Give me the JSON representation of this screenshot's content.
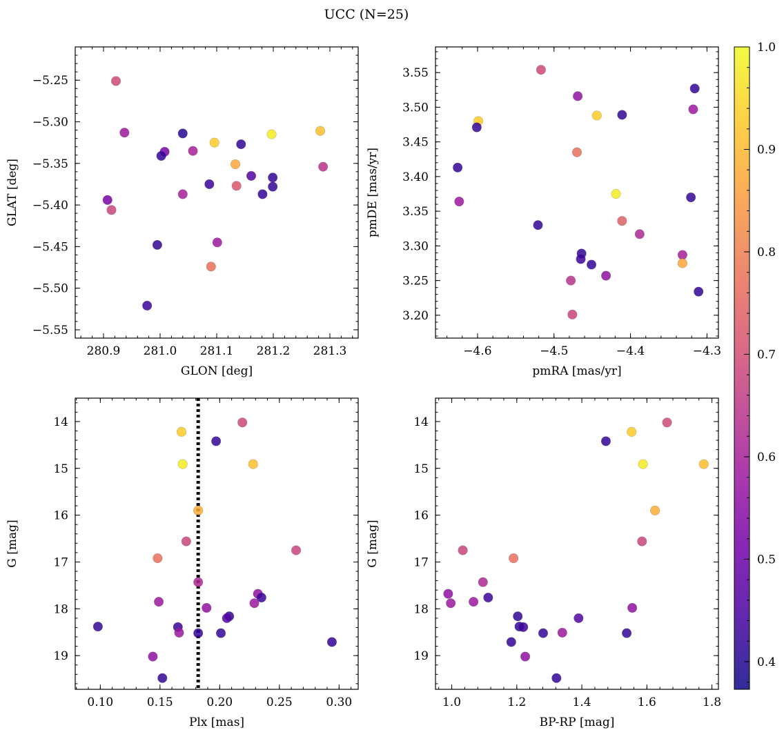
{
  "figure": {
    "title": "UCC (N=25)"
  },
  "colormap": {
    "name": "plasma",
    "alpha": 0.85,
    "stops": [
      "#0d0887",
      "#46039f",
      "#7201a8",
      "#9c179e",
      "#bd3786",
      "#d8576b",
      "#ed7953",
      "#fb9f3a",
      "#fdca26",
      "#f0f921"
    ],
    "range": [
      0.373,
      1.0
    ],
    "colorbar_ticks": [
      0.4,
      0.5,
      0.6,
      0.7,
      0.8,
      0.9,
      1.0
    ],
    "colorbar_tick_labels": [
      "0.4",
      "0.5",
      "0.6",
      "0.7",
      "0.8",
      "0.9",
      "1.0"
    ]
  },
  "chart_data": [
    {
      "type": "scatter",
      "xlabel": "GLON [deg]",
      "ylabel": "GLAT [deg]",
      "xlim": [
        280.85,
        281.35
      ],
      "ylim": [
        -5.56,
        -5.21
      ],
      "invert_y": false,
      "xticks": [
        280.9,
        281.0,
        281.1,
        281.2,
        281.3
      ],
      "xtick_labels": [
        "280.9",
        "281.0",
        "281.1",
        "281.2",
        "281.3"
      ],
      "yticks": [
        -5.25,
        -5.3,
        -5.35,
        -5.4,
        -5.45,
        -5.5,
        -5.55
      ],
      "ytick_labels": [
        "−5.25",
        "−5.30",
        "−5.35",
        "−5.40",
        "−5.45",
        "−5.50",
        "−5.55"
      ],
      "points": [
        {
          "x": 280.922,
          "y": -5.251,
          "c": 0.69
        },
        {
          "x": 280.937,
          "y": -5.313,
          "c": 0.58
        },
        {
          "x": 281.04,
          "y": -5.314,
          "c": 0.4
        },
        {
          "x": 281.096,
          "y": -5.325,
          "c": 0.93
        },
        {
          "x": 281.143,
          "y": -5.327,
          "c": 0.42
        },
        {
          "x": 281.197,
          "y": -5.315,
          "c": 0.98
        },
        {
          "x": 281.283,
          "y": -5.311,
          "c": 0.91
        },
        {
          "x": 281.008,
          "y": -5.336,
          "c": 0.52
        },
        {
          "x": 281.002,
          "y": -5.341,
          "c": 0.42
        },
        {
          "x": 281.058,
          "y": -5.335,
          "c": 0.6
        },
        {
          "x": 281.133,
          "y": -5.351,
          "c": 0.87
        },
        {
          "x": 281.161,
          "y": -5.365,
          "c": 0.46
        },
        {
          "x": 281.199,
          "y": -5.367,
          "c": 0.42
        },
        {
          "x": 281.288,
          "y": -5.354,
          "c": 0.64
        },
        {
          "x": 281.087,
          "y": -5.375,
          "c": 0.43
        },
        {
          "x": 281.135,
          "y": -5.377,
          "c": 0.72
        },
        {
          "x": 281.199,
          "y": -5.378,
          "c": 0.42
        },
        {
          "x": 281.181,
          "y": -5.387,
          "c": 0.42
        },
        {
          "x": 281.04,
          "y": -5.387,
          "c": 0.6
        },
        {
          "x": 280.907,
          "y": -5.394,
          "c": 0.52
        },
        {
          "x": 280.914,
          "y": -5.406,
          "c": 0.68
        },
        {
          "x": 280.995,
          "y": -5.448,
          "c": 0.42
        },
        {
          "x": 281.101,
          "y": -5.445,
          "c": 0.58
        },
        {
          "x": 281.09,
          "y": -5.474,
          "c": 0.77
        },
        {
          "x": 280.977,
          "y": -5.521,
          "c": 0.43
        }
      ]
    },
    {
      "type": "scatter",
      "xlabel": "pmRA [mas/yr]",
      "ylabel": "pmDE [mas/yr]",
      "xlim": [
        -4.655,
        -4.285
      ],
      "ylim": [
        3.167,
        3.587
      ],
      "invert_y": false,
      "xticks": [
        -4.6,
        -4.5,
        -4.4,
        -4.3
      ],
      "xtick_labels": [
        "−4.6",
        "−4.5",
        "−4.4",
        "−4.3"
      ],
      "yticks": [
        3.2,
        3.25,
        3.3,
        3.35,
        3.4,
        3.45,
        3.5,
        3.55
      ],
      "ytick_labels": [
        "3.20",
        "3.25",
        "3.30",
        "3.35",
        "3.40",
        "3.45",
        "3.50",
        "3.55"
      ],
      "points": [
        {
          "x": -4.517,
          "y": 3.554,
          "c": 0.69
        },
        {
          "x": -4.316,
          "y": 3.527,
          "c": 0.42
        },
        {
          "x": -4.469,
          "y": 3.516,
          "c": 0.56
        },
        {
          "x": -4.318,
          "y": 3.497,
          "c": 0.58
        },
        {
          "x": -4.411,
          "y": 3.489,
          "c": 0.42
        },
        {
          "x": -4.444,
          "y": 3.488,
          "c": 0.93
        },
        {
          "x": -4.599,
          "y": 3.48,
          "c": 0.93
        },
        {
          "x": -4.601,
          "y": 3.471,
          "c": 0.42
        },
        {
          "x": -4.47,
          "y": 3.435,
          "c": 0.77
        },
        {
          "x": -4.626,
          "y": 3.413,
          "c": 0.42
        },
        {
          "x": -4.419,
          "y": 3.375,
          "c": 0.98
        },
        {
          "x": -4.321,
          "y": 3.37,
          "c": 0.42
        },
        {
          "x": -4.624,
          "y": 3.364,
          "c": 0.58
        },
        {
          "x": -4.411,
          "y": 3.336,
          "c": 0.74
        },
        {
          "x": -4.521,
          "y": 3.33,
          "c": 0.42
        },
        {
          "x": -4.388,
          "y": 3.317,
          "c": 0.62
        },
        {
          "x": -4.464,
          "y": 3.289,
          "c": 0.42
        },
        {
          "x": -4.332,
          "y": 3.287,
          "c": 0.6
        },
        {
          "x": -4.465,
          "y": 3.281,
          "c": 0.43
        },
        {
          "x": -4.332,
          "y": 3.275,
          "c": 0.87
        },
        {
          "x": -4.451,
          "y": 3.273,
          "c": 0.42
        },
        {
          "x": -4.432,
          "y": 3.257,
          "c": 0.56
        },
        {
          "x": -4.478,
          "y": 3.25,
          "c": 0.64
        },
        {
          "x": -4.311,
          "y": 3.234,
          "c": 0.42
        },
        {
          "x": -4.476,
          "y": 3.201,
          "c": 0.68
        }
      ]
    },
    {
      "type": "scatter",
      "xlabel": "Plx [mas]",
      "ylabel": "G [mag]",
      "xlim": [
        0.079,
        0.316
      ],
      "ylim": [
        13.5,
        19.72
      ],
      "invert_y": true,
      "xticks": [
        0.1,
        0.15,
        0.2,
        0.25,
        0.3
      ],
      "xtick_labels": [
        "0.10",
        "0.15",
        "0.20",
        "0.25",
        "0.30"
      ],
      "yticks": [
        14,
        15,
        16,
        17,
        18,
        19
      ],
      "ytick_labels": [
        "14",
        "15",
        "16",
        "17",
        "18",
        "19"
      ],
      "vline": {
        "x": 0.182,
        "style": "dotted",
        "color": "#000000"
      },
      "points": [
        {
          "x": 0.219,
          "y": 14.02,
          "c": 0.69
        },
        {
          "x": 0.168,
          "y": 14.22,
          "c": 0.93
        },
        {
          "x": 0.197,
          "y": 14.42,
          "c": 0.42
        },
        {
          "x": 0.169,
          "y": 14.91,
          "c": 0.98
        },
        {
          "x": 0.228,
          "y": 14.91,
          "c": 0.91
        },
        {
          "x": 0.182,
          "y": 15.9,
          "c": 0.88
        },
        {
          "x": 0.172,
          "y": 16.56,
          "c": 0.68
        },
        {
          "x": 0.264,
          "y": 16.75,
          "c": 0.68
        },
        {
          "x": 0.148,
          "y": 16.92,
          "c": 0.77
        },
        {
          "x": 0.182,
          "y": 17.43,
          "c": 0.62
        },
        {
          "x": 0.232,
          "y": 17.68,
          "c": 0.56
        },
        {
          "x": 0.235,
          "y": 17.76,
          "c": 0.43
        },
        {
          "x": 0.149,
          "y": 17.85,
          "c": 0.58
        },
        {
          "x": 0.229,
          "y": 17.88,
          "c": 0.58
        },
        {
          "x": 0.189,
          "y": 17.98,
          "c": 0.56
        },
        {
          "x": 0.208,
          "y": 18.16,
          "c": 0.42
        },
        {
          "x": 0.206,
          "y": 18.2,
          "c": 0.46
        },
        {
          "x": 0.098,
          "y": 18.38,
          "c": 0.42
        },
        {
          "x": 0.165,
          "y": 18.39,
          "c": 0.43
        },
        {
          "x": 0.166,
          "y": 18.51,
          "c": 0.58
        },
        {
          "x": 0.182,
          "y": 18.52,
          "c": 0.42
        },
        {
          "x": 0.201,
          "y": 18.52,
          "c": 0.42
        },
        {
          "x": 0.294,
          "y": 18.71,
          "c": 0.42
        },
        {
          "x": 0.144,
          "y": 19.02,
          "c": 0.56
        },
        {
          "x": 0.152,
          "y": 19.48,
          "c": 0.42
        }
      ]
    },
    {
      "type": "scatter",
      "xlabel": "BP-RP [mag]",
      "ylabel": "G [mag]",
      "xlim": [
        0.95,
        1.82
      ],
      "ylim": [
        13.5,
        19.72
      ],
      "invert_y": true,
      "xticks": [
        1.0,
        1.2,
        1.4,
        1.6,
        1.8
      ],
      "xtick_labels": [
        "1.0",
        "1.2",
        "1.4",
        "1.6",
        "1.8"
      ],
      "yticks": [
        14,
        15,
        16,
        17,
        18,
        19
      ],
      "ytick_labels": [
        "14",
        "15",
        "16",
        "17",
        "18",
        "19"
      ],
      "points": [
        {
          "x": 1.662,
          "y": 14.02,
          "c": 0.69
        },
        {
          "x": 1.553,
          "y": 14.22,
          "c": 0.93
        },
        {
          "x": 1.474,
          "y": 14.42,
          "c": 0.42
        },
        {
          "x": 1.588,
          "y": 14.91,
          "c": 0.98
        },
        {
          "x": 1.775,
          "y": 14.91,
          "c": 0.91
        },
        {
          "x": 1.625,
          "y": 15.9,
          "c": 0.88
        },
        {
          "x": 1.585,
          "y": 16.56,
          "c": 0.68
        },
        {
          "x": 1.034,
          "y": 16.75,
          "c": 0.68
        },
        {
          "x": 1.19,
          "y": 16.92,
          "c": 0.77
        },
        {
          "x": 1.096,
          "y": 17.43,
          "c": 0.62
        },
        {
          "x": 0.989,
          "y": 17.68,
          "c": 0.56
        },
        {
          "x": 1.112,
          "y": 17.76,
          "c": 0.43
        },
        {
          "x": 1.067,
          "y": 17.85,
          "c": 0.58
        },
        {
          "x": 0.997,
          "y": 17.88,
          "c": 0.58
        },
        {
          "x": 1.555,
          "y": 17.98,
          "c": 0.56
        },
        {
          "x": 1.203,
          "y": 18.16,
          "c": 0.42
        },
        {
          "x": 1.39,
          "y": 18.2,
          "c": 0.46
        },
        {
          "x": 1.208,
          "y": 18.38,
          "c": 0.42
        },
        {
          "x": 1.22,
          "y": 18.39,
          "c": 0.43
        },
        {
          "x": 1.34,
          "y": 18.51,
          "c": 0.58
        },
        {
          "x": 1.281,
          "y": 18.52,
          "c": 0.42
        },
        {
          "x": 1.538,
          "y": 18.52,
          "c": 0.42
        },
        {
          "x": 1.183,
          "y": 18.71,
          "c": 0.42
        },
        {
          "x": 1.226,
          "y": 19.02,
          "c": 0.56
        },
        {
          "x": 1.322,
          "y": 19.48,
          "c": 0.42
        }
      ]
    }
  ]
}
